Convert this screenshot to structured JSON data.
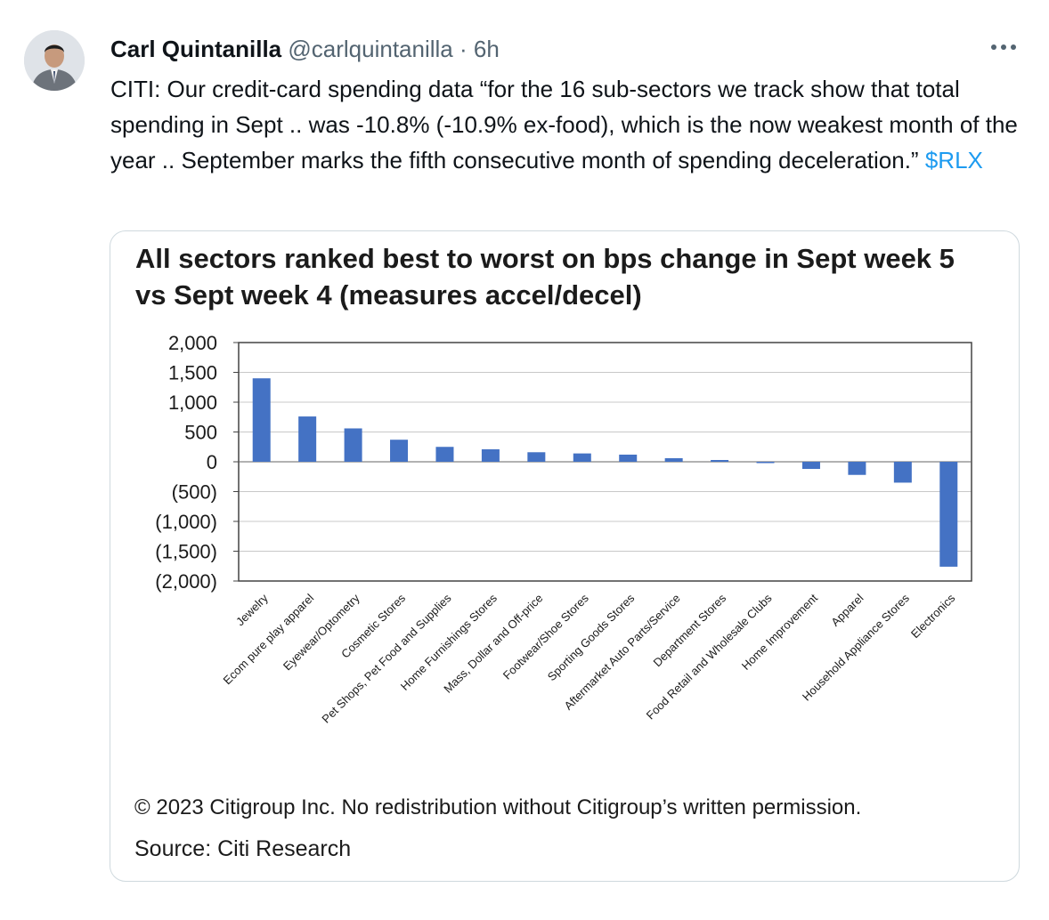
{
  "tweet": {
    "author_name": "Carl Quintanilla",
    "handle": "@carlquintanilla",
    "separator": "·",
    "time": "6h",
    "text_before": "CITI: Our credit-card spending data “for the 16 sub-sectors we track show that total spending in Sept .. was -10.8% (-10.9% ex-food), which is the now weakest month of the year .. September marks the fifth consecutive month of spending deceleration.”",
    "cashtag": "$RLX"
  },
  "media": {
    "copyright": "© 2023 Citigroup Inc. No redistribution without Citigroup’s written permission.",
    "source": "Source: Citi Research"
  },
  "chart_data": {
    "type": "bar",
    "title": "All sectors ranked best to worst on bps change in Sept week 5 vs Sept week 4 (measures accel/decel)",
    "xlabel": "",
    "ylabel": "",
    "ylim": [
      -2000,
      2000
    ],
    "yticks": [
      2000,
      1500,
      1000,
      500,
      0,
      -500,
      -1000,
      -1500,
      -2000
    ],
    "ytick_labels": [
      "2,000",
      "1,500",
      "1,000",
      "500",
      "0",
      "(500)",
      "(1,000)",
      "(1,500)",
      "(2,000)"
    ],
    "categories": [
      "Jewelry",
      "Ecom pure play apparel",
      "Eyewear/Optometry",
      "Cosmetic Stores",
      "Pet Shops, Pet Food and Supplies",
      "Home Furnishings Stores",
      "Mass, Dollar and Off-price",
      "Footwear/Shoe Stores",
      "Sporting Goods Stores",
      "Aftermarket Auto Parts/Service",
      "Department Stores",
      "Food Retail and Wholesale Clubs",
      "Home Improvement",
      "Apparel",
      "Household Appliance Stores",
      "Electronics"
    ],
    "values": [
      1400,
      760,
      560,
      370,
      250,
      210,
      160,
      140,
      120,
      60,
      30,
      -10,
      -120,
      -220,
      -350,
      -1760
    ],
    "grid": true,
    "legend": "none",
    "bar_color": "#4472c4"
  }
}
